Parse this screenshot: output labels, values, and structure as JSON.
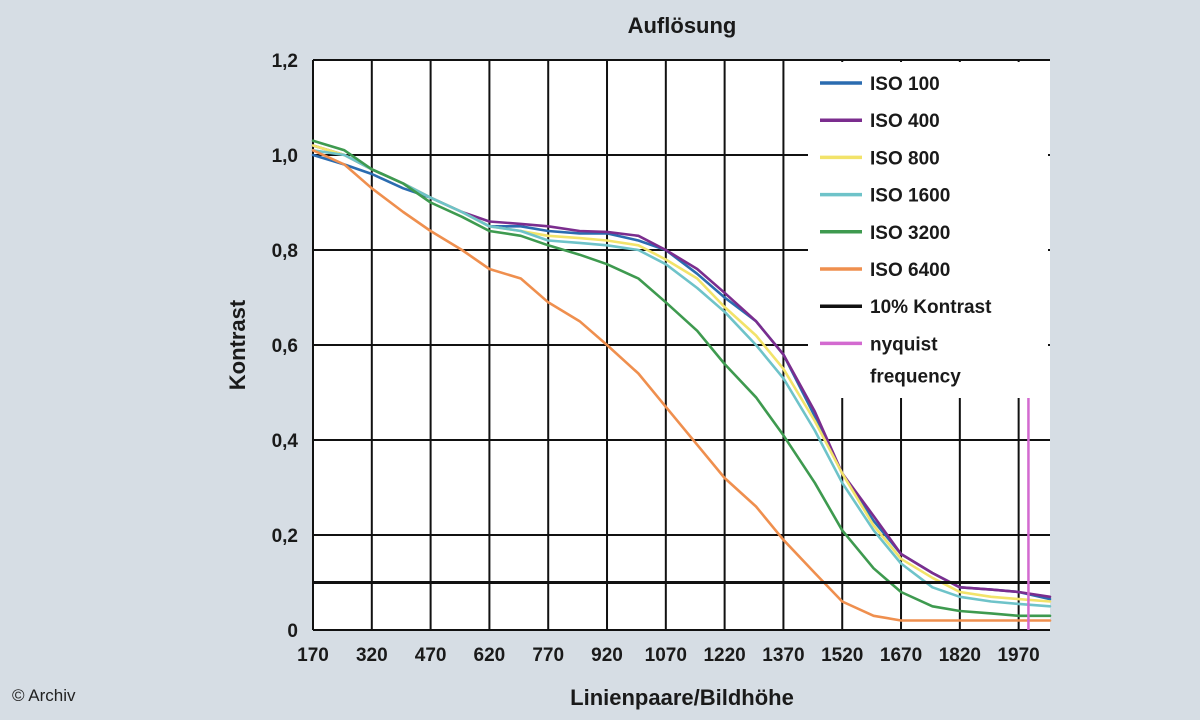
{
  "credit": "© Archiv",
  "chart_data": {
    "type": "line",
    "title": "Auflösung",
    "xlabel": "Linienpaare/Bildhöhe",
    "ylabel": "Kontrast",
    "xlim": [
      170,
      2050
    ],
    "ylim": [
      0,
      1.2
    ],
    "xticks": [
      170,
      320,
      470,
      620,
      770,
      920,
      1070,
      1220,
      1370,
      1520,
      1670,
      1820,
      1970
    ],
    "xtick_labels": [
      "170",
      "320",
      "470",
      "620",
      "770",
      "920",
      "1070",
      "1220",
      "1370",
      "1520",
      "1670",
      "1820",
      "1970"
    ],
    "yticks": [
      0,
      0.2,
      0.4,
      0.6,
      0.8,
      1.0,
      1.2
    ],
    "ytick_labels": [
      "0",
      "0,2",
      "0,4",
      "0,6",
      "0,8",
      "1,0",
      "1,2"
    ],
    "grid": true,
    "legend_position": "top-right",
    "series": [
      {
        "name": "ISO 100",
        "color": "#2b6cb0",
        "x": [
          170,
          250,
          320,
          400,
          470,
          550,
          620,
          700,
          770,
          850,
          920,
          1000,
          1070,
          1150,
          1220,
          1300,
          1370,
          1450,
          1520,
          1600,
          1670,
          1750,
          1820,
          1900,
          1970,
          2050
        ],
        "y": [
          1.0,
          0.98,
          0.96,
          0.93,
          0.91,
          0.88,
          0.85,
          0.85,
          0.84,
          0.835,
          0.835,
          0.82,
          0.8,
          0.75,
          0.7,
          0.65,
          0.58,
          0.45,
          0.33,
          0.23,
          0.16,
          0.12,
          0.09,
          0.085,
          0.08,
          0.065
        ]
      },
      {
        "name": "ISO 400",
        "color": "#7b2d8e",
        "x": [
          170,
          250,
          320,
          400,
          470,
          550,
          620,
          700,
          770,
          850,
          920,
          1000,
          1070,
          1150,
          1220,
          1300,
          1370,
          1450,
          1520,
          1600,
          1670,
          1750,
          1820,
          1900,
          1970,
          2050
        ],
        "y": [
          1.02,
          1.0,
          0.97,
          0.94,
          0.91,
          0.88,
          0.86,
          0.855,
          0.85,
          0.84,
          0.838,
          0.83,
          0.8,
          0.76,
          0.71,
          0.65,
          0.58,
          0.46,
          0.33,
          0.24,
          0.16,
          0.12,
          0.09,
          0.085,
          0.08,
          0.07
        ]
      },
      {
        "name": "ISO 800",
        "color": "#f2e36a",
        "x": [
          170,
          250,
          320,
          400,
          470,
          550,
          620,
          700,
          770,
          850,
          920,
          1000,
          1070,
          1150,
          1220,
          1300,
          1370,
          1450,
          1520,
          1600,
          1670,
          1750,
          1820,
          1900,
          1970,
          2050
        ],
        "y": [
          1.02,
          1.0,
          0.97,
          0.94,
          0.91,
          0.88,
          0.85,
          0.84,
          0.83,
          0.825,
          0.82,
          0.81,
          0.78,
          0.74,
          0.68,
          0.62,
          0.55,
          0.44,
          0.33,
          0.22,
          0.15,
          0.11,
          0.08,
          0.07,
          0.065,
          0.06
        ]
      },
      {
        "name": "ISO 1600",
        "color": "#6ec3c9",
        "x": [
          170,
          250,
          320,
          400,
          470,
          550,
          620,
          700,
          770,
          850,
          920,
          1000,
          1070,
          1150,
          1220,
          1300,
          1370,
          1450,
          1520,
          1600,
          1670,
          1750,
          1820,
          1900,
          1970,
          2050
        ],
        "y": [
          1.01,
          1.0,
          0.97,
          0.94,
          0.91,
          0.88,
          0.85,
          0.84,
          0.82,
          0.815,
          0.81,
          0.8,
          0.77,
          0.72,
          0.67,
          0.6,
          0.53,
          0.42,
          0.31,
          0.21,
          0.14,
          0.09,
          0.07,
          0.06,
          0.055,
          0.05
        ]
      },
      {
        "name": "ISO 3200",
        "color": "#3e9a4f",
        "x": [
          170,
          250,
          320,
          400,
          470,
          550,
          620,
          700,
          770,
          850,
          920,
          1000,
          1070,
          1150,
          1220,
          1300,
          1370,
          1450,
          1520,
          1600,
          1670,
          1750,
          1820,
          1900,
          1970,
          2050
        ],
        "y": [
          1.03,
          1.01,
          0.97,
          0.94,
          0.9,
          0.87,
          0.84,
          0.83,
          0.81,
          0.79,
          0.77,
          0.74,
          0.69,
          0.63,
          0.56,
          0.49,
          0.41,
          0.31,
          0.21,
          0.13,
          0.08,
          0.05,
          0.04,
          0.035,
          0.03,
          0.03
        ]
      },
      {
        "name": "ISO 6400",
        "color": "#ef8f4e",
        "x": [
          170,
          250,
          320,
          400,
          470,
          550,
          620,
          700,
          770,
          850,
          920,
          1000,
          1070,
          1150,
          1220,
          1300,
          1370,
          1450,
          1520,
          1600,
          1670,
          1750,
          1820,
          1900,
          1970,
          2050
        ],
        "y": [
          1.01,
          0.98,
          0.93,
          0.88,
          0.84,
          0.8,
          0.76,
          0.74,
          0.69,
          0.65,
          0.6,
          0.54,
          0.47,
          0.39,
          0.32,
          0.26,
          0.19,
          0.12,
          0.06,
          0.03,
          0.02,
          0.02,
          0.02,
          0.02,
          0.02,
          0.02
        ]
      }
    ],
    "reference_lines": [
      {
        "name": "10% Kontrast",
        "color": "#111111",
        "orientation": "horizontal",
        "value": 0.1
      },
      {
        "name": "nyquist frequency",
        "color": "#d36ad0",
        "orientation": "vertical",
        "value": 1995
      }
    ],
    "legend_entries": [
      "ISO 100",
      "ISO 400",
      "ISO 800",
      "ISO 1600",
      "ISO 3200",
      "ISO 6400",
      "10% Kontrast",
      "nyquist frequency"
    ]
  }
}
